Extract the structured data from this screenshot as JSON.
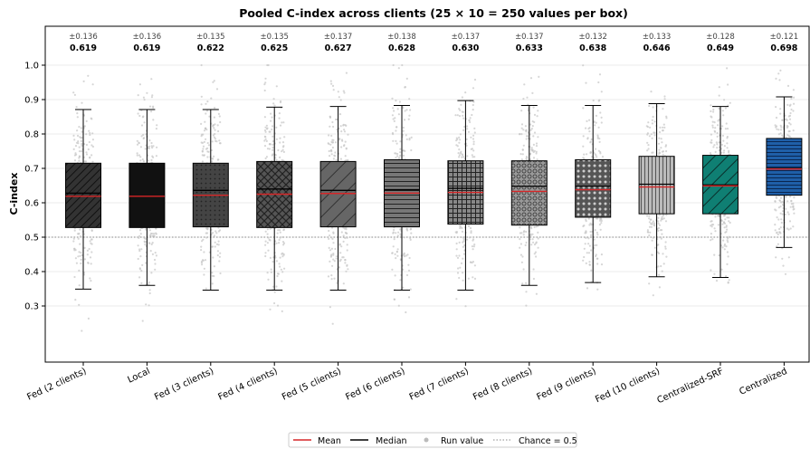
{
  "chart_data": {
    "type": "box",
    "title": "Pooled C-index across clients (25 × 10 = 250 values per box)",
    "xlabel": "",
    "ylabel": "C-index",
    "ylim": [
      0.18,
      1.08
    ],
    "yticks": [
      "0.3",
      "0.4",
      "0.5",
      "0.6",
      "0.7",
      "0.8",
      "0.9",
      "1.0"
    ],
    "grid": "horizontal",
    "reference_line": {
      "label": "Chance = 0.5",
      "value": 0.5
    },
    "legend": {
      "position": "bottom-center",
      "entries": [
        {
          "label": "Mean",
          "kind": "line",
          "color": "#d62728"
        },
        {
          "label": "Median",
          "kind": "line",
          "color": "#000000"
        },
        {
          "label": "Run value",
          "kind": "dot",
          "color": "#bbbbbb"
        },
        {
          "label": "Chance = 0.5",
          "kind": "dotted",
          "color": "#888888"
        }
      ]
    },
    "boxes": [
      {
        "category": "Fed (2 clients)",
        "std_label": "±0.136",
        "mean_label": "0.619",
        "mean": 0.619,
        "median": 0.628,
        "q1": 0.528,
        "q3": 0.715,
        "whisker_low": 0.349,
        "whisker_high": 0.871,
        "color": "#333333",
        "pattern": "diag"
      },
      {
        "category": "Local",
        "std_label": "±0.136",
        "mean_label": "0.619",
        "mean": 0.619,
        "median": 0.619,
        "q1": 0.528,
        "q3": 0.715,
        "whisker_low": 0.36,
        "whisker_high": 0.871,
        "color": "#111111",
        "pattern": "none"
      },
      {
        "category": "Fed (3 clients)",
        "std_label": "±0.135",
        "mean_label": "0.622",
        "mean": 0.622,
        "median": 0.636,
        "q1": 0.53,
        "q3": 0.715,
        "whisker_low": 0.346,
        "whisker_high": 0.871,
        "color": "#444444",
        "pattern": "dots"
      },
      {
        "category": "Fed (4 clients)",
        "std_label": "±0.135",
        "mean_label": "0.625",
        "mean": 0.625,
        "median": 0.64,
        "q1": 0.528,
        "q3": 0.72,
        "whisker_low": 0.346,
        "whisker_high": 0.878,
        "color": "#555555",
        "pattern": "cross"
      },
      {
        "category": "Fed (5 clients)",
        "std_label": "±0.137",
        "mean_label": "0.627",
        "mean": 0.627,
        "median": 0.636,
        "q1": 0.53,
        "q3": 0.72,
        "whisker_low": 0.346,
        "whisker_high": 0.88,
        "color": "#666666",
        "pattern": "diag-wide"
      },
      {
        "category": "Fed (6 clients)",
        "std_label": "±0.138",
        "mean_label": "0.628",
        "mean": 0.628,
        "median": 0.638,
        "q1": 0.53,
        "q3": 0.725,
        "whisker_low": 0.346,
        "whisker_high": 0.883,
        "color": "#777777",
        "pattern": "hlines"
      },
      {
        "category": "Fed (7 clients)",
        "std_label": "±0.137",
        "mean_label": "0.630",
        "mean": 0.63,
        "median": 0.642,
        "q1": 0.538,
        "q3": 0.722,
        "whisker_low": 0.346,
        "whisker_high": 0.897,
        "color": "#888888",
        "pattern": "grid"
      },
      {
        "category": "Fed (8 clients)",
        "std_label": "±0.137",
        "mean_label": "0.633",
        "mean": 0.633,
        "median": 0.648,
        "q1": 0.535,
        "q3": 0.722,
        "whisker_low": 0.36,
        "whisker_high": 0.883,
        "color": "#999999",
        "pattern": "circles"
      },
      {
        "category": "Fed (9 clients)",
        "std_label": "±0.132",
        "mean_label": "0.638",
        "mean": 0.638,
        "median": 0.648,
        "q1": 0.558,
        "q3": 0.725,
        "whisker_low": 0.368,
        "whisker_high": 0.883,
        "color": "#555555",
        "pattern": "dots-dense"
      },
      {
        "category": "Fed (10 clients)",
        "std_label": "±0.133",
        "mean_label": "0.646",
        "mean": 0.646,
        "median": 0.654,
        "q1": 0.568,
        "q3": 0.735,
        "whisker_low": 0.385,
        "whisker_high": 0.888,
        "color": "#bbbbbb",
        "pattern": "vlines"
      },
      {
        "category": "Centralized-SRF",
        "std_label": "±0.128",
        "mean_label": "0.649",
        "mean": 0.649,
        "median": 0.652,
        "q1": 0.568,
        "q3": 0.738,
        "whisker_low": 0.383,
        "whisker_high": 0.88,
        "color": "#0f7f73",
        "pattern": "diag-wide-dark"
      },
      {
        "category": "Centralized",
        "std_label": "±0.121",
        "mean_label": "0.698",
        "mean": 0.698,
        "median": 0.7,
        "q1": 0.622,
        "q3": 0.787,
        "whisker_low": 0.47,
        "whisker_high": 0.908,
        "color": "#1f5fa8",
        "pattern": "hlines-dark"
      }
    ]
  }
}
